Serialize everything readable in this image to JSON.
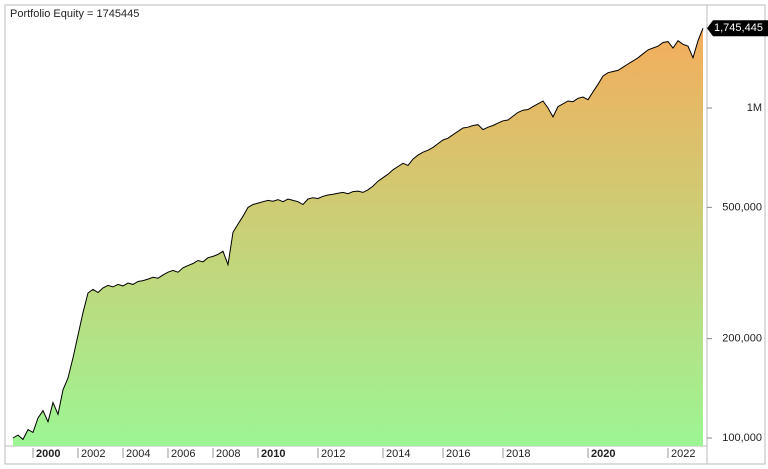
{
  "chart_data": {
    "type": "area",
    "title": "Portfolio Equity = 1745445",
    "categories": [
      null,
      null,
      null,
      null,
      "2000",
      null,
      null,
      null,
      null,
      null,
      null,
      null,
      null,
      "2002",
      null,
      null,
      null,
      null,
      null,
      null,
      null,
      null,
      "2004",
      null,
      null,
      null,
      null,
      null,
      null,
      null,
      null,
      "2006",
      null,
      null,
      null,
      null,
      null,
      null,
      null,
      null,
      "2008",
      null,
      null,
      null,
      null,
      null,
      null,
      null,
      null,
      "2010",
      null,
      null,
      null,
      null,
      null,
      null,
      null,
      null,
      null,
      null,
      null,
      "2012",
      null,
      null,
      null,
      null,
      null,
      null,
      null,
      null,
      null,
      null,
      null,
      null,
      "2014",
      null,
      null,
      null,
      null,
      null,
      null,
      null,
      null,
      null,
      null,
      null,
      "2016",
      null,
      null,
      null,
      null,
      null,
      null,
      null,
      null,
      null,
      null,
      null,
      "2018",
      null,
      null,
      null,
      null,
      null,
      null,
      null,
      null,
      null,
      null,
      null,
      null,
      null,
      null,
      null,
      null,
      "2020",
      null,
      null,
      null,
      null,
      null,
      null,
      null,
      null,
      null,
      null,
      null,
      null,
      null,
      null,
      null,
      "2022",
      null,
      null,
      null,
      null,
      null,
      null,
      null
    ],
    "values": [
      100000,
      102000,
      99000,
      106000,
      104000,
      115000,
      121000,
      112000,
      128000,
      118000,
      140000,
      152000,
      175000,
      205000,
      240000,
      275000,
      282000,
      276000,
      285000,
      290000,
      287000,
      292000,
      289000,
      295000,
      292000,
      298000,
      300000,
      303000,
      307000,
      305000,
      312000,
      318000,
      322000,
      318000,
      328000,
      333000,
      338000,
      345000,
      342000,
      352000,
      355000,
      360000,
      368000,
      335000,
      420000,
      445000,
      470000,
      500000,
      510000,
      515000,
      520000,
      525000,
      522000,
      528000,
      520000,
      530000,
      525000,
      520000,
      510000,
      530000,
      535000,
      532000,
      540000,
      545000,
      548000,
      552000,
      555000,
      550000,
      558000,
      560000,
      555000,
      565000,
      580000,
      600000,
      615000,
      630000,
      650000,
      665000,
      680000,
      670000,
      700000,
      720000,
      735000,
      745000,
      760000,
      780000,
      800000,
      810000,
      830000,
      850000,
      870000,
      875000,
      885000,
      890000,
      860000,
      875000,
      885000,
      900000,
      915000,
      920000,
      945000,
      970000,
      985000,
      990000,
      1010000,
      1030000,
      1050000,
      1000000,
      940000,
      1010000,
      1030000,
      1050000,
      1045000,
      1070000,
      1080000,
      1060000,
      1120000,
      1180000,
      1250000,
      1280000,
      1290000,
      1300000,
      1330000,
      1360000,
      1390000,
      1420000,
      1460000,
      1500000,
      1520000,
      1540000,
      1580000,
      1590000,
      1520000,
      1600000,
      1560000,
      1540000,
      1420000,
      1600000,
      1745445
    ],
    "value_labels": [
      null,
      null,
      null,
      null,
      null,
      null,
      null,
      null,
      null,
      null,
      null,
      null,
      null,
      null,
      null,
      null,
      null,
      null,
      null,
      null,
      null,
      null,
      null,
      null,
      null,
      null,
      null,
      null,
      null,
      null,
      null,
      null,
      null,
      null,
      null,
      null,
      null,
      null,
      null,
      null,
      null,
      null,
      null,
      null,
      null,
      null,
      null,
      null,
      null,
      null,
      null,
      null,
      null,
      null,
      null,
      null,
      null,
      null,
      null,
      null,
      null,
      null,
      null,
      null,
      null,
      null,
      null,
      null,
      null,
      null,
      null,
      null,
      null,
      null,
      null,
      null,
      null,
      null,
      null,
      null,
      null,
      null,
      null,
      null,
      null,
      null,
      null,
      null,
      null,
      null,
      null,
      null,
      null,
      null,
      null,
      null,
      null,
      null,
      null,
      null,
      null,
      null,
      null,
      null,
      null,
      null,
      null,
      null,
      null,
      null,
      null,
      null,
      null,
      null,
      null,
      null,
      null,
      null,
      null,
      null,
      null,
      null,
      null,
      null,
      null,
      null,
      null,
      null,
      null,
      null,
      null,
      null,
      null,
      null,
      null,
      null,
      null,
      null,
      "1,745,445"
    ],
    "ylim": [
      98600,
      2010000
    ],
    "log_scale": true,
    "yticks": [
      {
        "value": 100000,
        "label": "100,000"
      },
      {
        "value": 200000,
        "label": "200,000"
      },
      {
        "value": 500000,
        "label": "500,000"
      },
      {
        "value": 1000000,
        "label": "1M"
      }
    ],
    "color": "#000000",
    "fill_top": "#f4ad5c",
    "fill_bottom": "#9cf594"
  }
}
